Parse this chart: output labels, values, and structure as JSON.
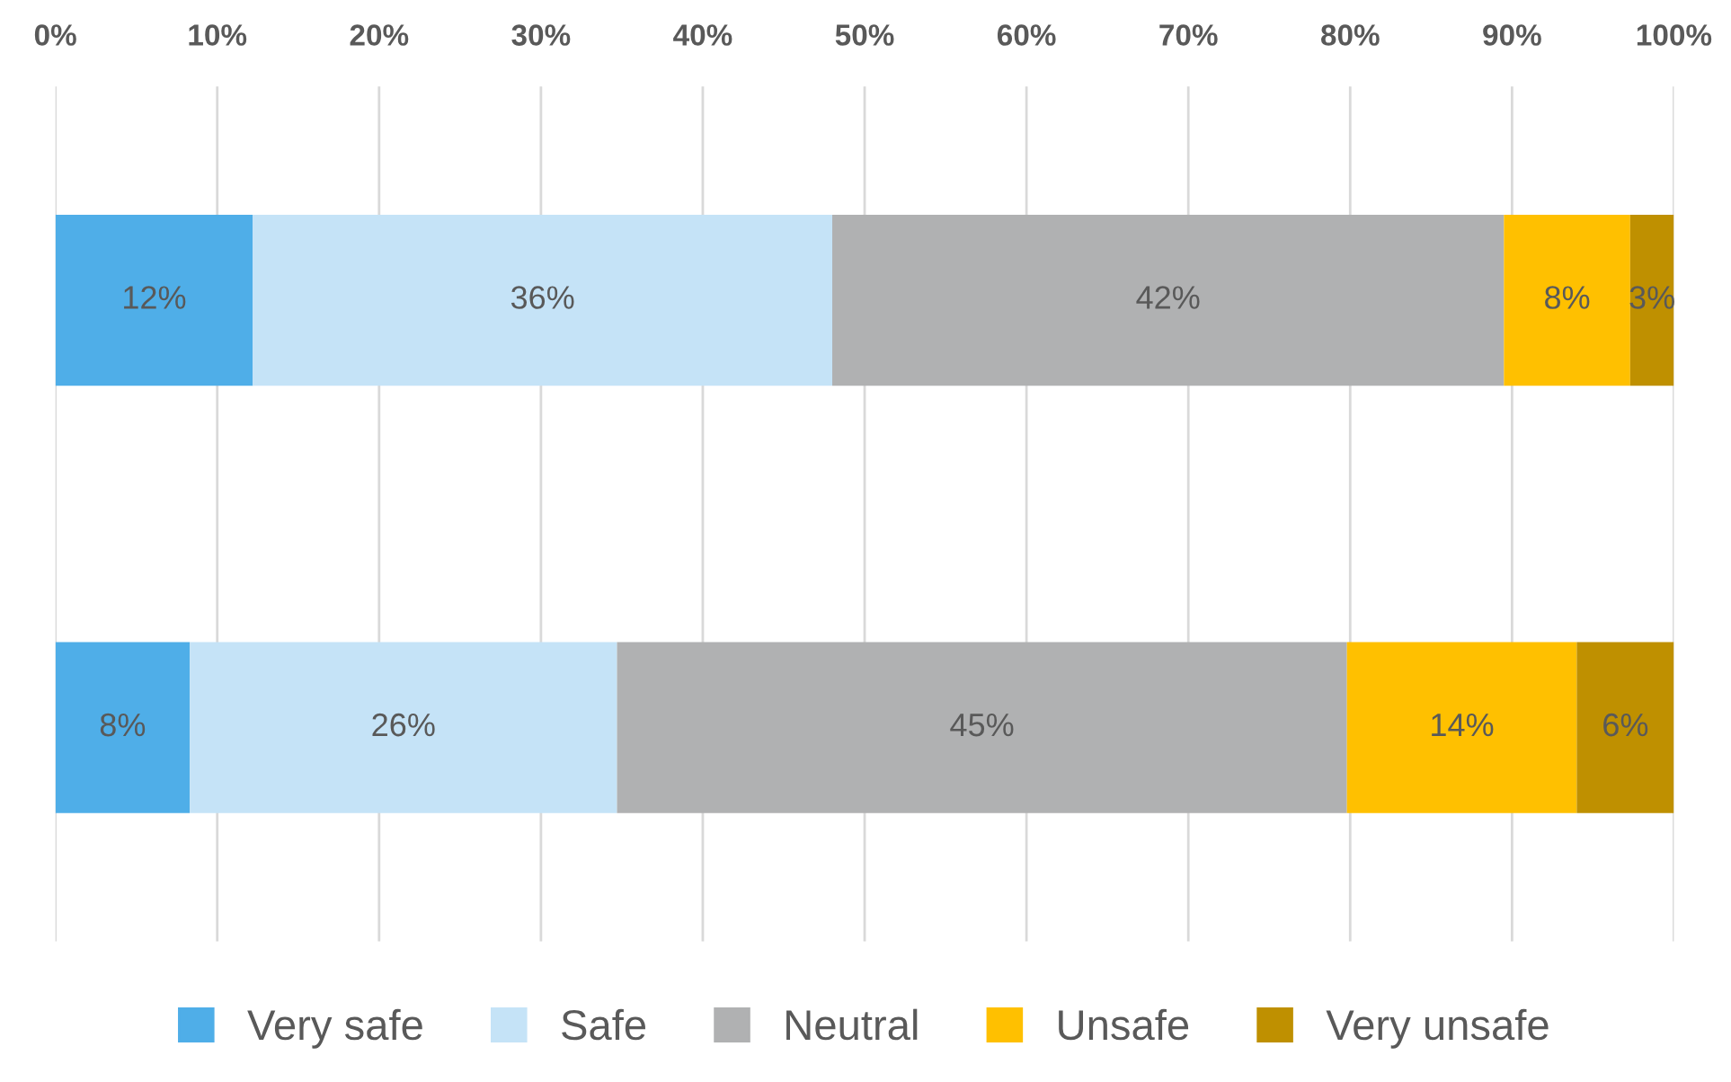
{
  "chart_data": {
    "type": "bar",
    "orientation": "horizontal",
    "stacked": true,
    "categories": [
      null,
      null
    ],
    "series": [
      {
        "name": "Very safe",
        "color": "#4faee8",
        "values": [
          12.2,
          8.3
        ],
        "value_labels": [
          "12%",
          "8%"
        ]
      },
      {
        "name": "Safe",
        "color": "#c5e3f7",
        "values": [
          35.8,
          26.4
        ],
        "value_labels": [
          "36%",
          "26%"
        ]
      },
      {
        "name": "Neutral",
        "color": "#b0b1b2",
        "values": [
          41.5,
          45.1
        ],
        "value_labels": [
          "42%",
          "45%"
        ]
      },
      {
        "name": "Unsafe",
        "color": "#ffc000",
        "values": [
          7.8,
          14.2
        ],
        "value_labels": [
          "8%",
          "14%"
        ]
      },
      {
        "name": "Very unsafe",
        "color": "#bf9000",
        "values": [
          2.7,
          6.0
        ],
        "value_labels": [
          "3%",
          "6%"
        ]
      }
    ],
    "xlim": [
      0,
      100
    ],
    "xticks": [
      {
        "value": 0,
        "label": "0%"
      },
      {
        "value": 10,
        "label": "10%"
      },
      {
        "value": 20,
        "label": "20%"
      },
      {
        "value": 30,
        "label": "30%"
      },
      {
        "value": 40,
        "label": "40%"
      },
      {
        "value": 50,
        "label": "50%"
      },
      {
        "value": 60,
        "label": "60%"
      },
      {
        "value": 70,
        "label": "70%"
      },
      {
        "value": 80,
        "label": "80%"
      },
      {
        "value": 90,
        "label": "90%"
      },
      {
        "value": 100,
        "label": "100%"
      }
    ],
    "grid": "x",
    "legend": "bottom"
  }
}
